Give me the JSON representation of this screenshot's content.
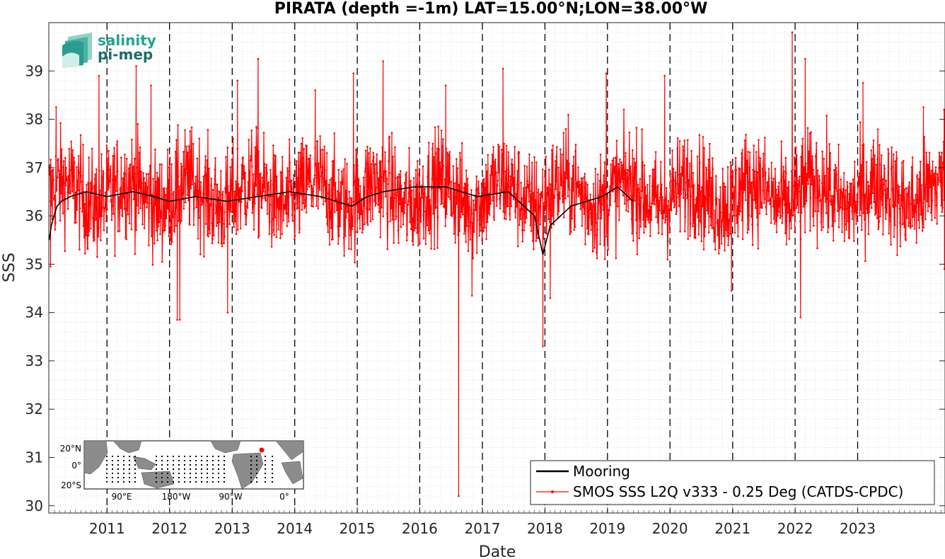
{
  "chart_data": {
    "type": "line",
    "title": "PIRATA (depth =-1m) LAT=15.00°N;LON=38.00°W",
    "xlabel": "Date",
    "ylabel": "SSS",
    "xlim": [
      "2010-01-26",
      "2024-05-25"
    ],
    "ylim": [
      29.85,
      40.0
    ],
    "y_ticks": [
      30,
      31,
      32,
      33,
      34,
      35,
      36,
      37,
      38,
      39
    ],
    "x_ticks": [
      "2011",
      "2012",
      "2013",
      "2014",
      "2015",
      "2016",
      "2017",
      "2018",
      "2019",
      "2020",
      "2021",
      "2022",
      "2023"
    ],
    "year_boundaries": [
      "2011-01-01",
      "2012-01-01",
      "2013-01-01",
      "2014-01-01",
      "2015-01-01",
      "2016-01-01",
      "2017-01-01",
      "2018-01-01",
      "2019-01-01",
      "2020-01-01",
      "2021-01-01",
      "2022-01-01",
      "2023-01-01"
    ],
    "grid": true,
    "legend_position": "bottom-right",
    "series": [
      {
        "name": "Mooring",
        "color": "#000000",
        "style": "solid",
        "points": [
          [
            "2010-01-28",
            35.5
          ],
          [
            "2010-02-10",
            35.8
          ],
          [
            "2010-02-25",
            36.0
          ],
          [
            "2010-03-15",
            36.2
          ],
          [
            "2010-04-10",
            36.3
          ],
          [
            "2010-06-01",
            36.4
          ],
          [
            "2010-09-01",
            36.5
          ],
          [
            "2011-01-01",
            36.4
          ],
          [
            "2011-06-01",
            36.5
          ],
          [
            "2011-10-01",
            36.4
          ],
          [
            "2012-01-01",
            36.3
          ],
          [
            "2012-06-01",
            36.4
          ],
          [
            "2012-12-01",
            36.3
          ],
          [
            "2013-06-01",
            36.4
          ],
          [
            "2013-12-01",
            36.5
          ],
          [
            "2014-06-01",
            36.4
          ],
          [
            "2014-12-01",
            36.2
          ],
          [
            "2015-03-01",
            36.4
          ],
          [
            "2015-06-01",
            36.5
          ],
          [
            "2015-12-01",
            36.6
          ],
          [
            "2016-06-01",
            36.6
          ],
          [
            "2016-12-01",
            36.4
          ],
          [
            "2017-06-01",
            36.5
          ],
          [
            "2017-11-01",
            36.0
          ],
          [
            "2017-12-20",
            35.2
          ],
          [
            "2018-02-01",
            35.8
          ],
          [
            "2018-06-01",
            36.2
          ],
          [
            "2018-12-01",
            36.4
          ],
          [
            "2019-03-01",
            36.6
          ],
          [
            "2019-06-01",
            36.3
          ]
        ]
      },
      {
        "name": "SMOS SSS L2Q v333 - 0.25 Deg (CATDS-CPDC)",
        "color": "#ff0000",
        "style": "solid-with-dots",
        "mean": 36.45,
        "spread": 0.55,
        "extremes": [
          [
            "2010-02-05",
            34.95
          ],
          [
            "2010-03-10",
            38.25
          ],
          [
            "2010-11-15",
            38.9
          ],
          [
            "2011-06-20",
            39.1
          ],
          [
            "2011-09-15",
            38.7
          ],
          [
            "2012-02-15",
            33.85
          ],
          [
            "2012-03-01",
            33.85
          ],
          [
            "2012-12-05",
            34.0
          ],
          [
            "2013-06-01",
            39.25
          ],
          [
            "2013-02-01",
            38.8
          ],
          [
            "2014-05-01",
            38.6
          ],
          [
            "2014-12-10",
            38.95
          ],
          [
            "2015-06-01",
            39.2
          ],
          [
            "2016-06-01",
            38.7
          ],
          [
            "2016-08-15",
            30.2
          ],
          [
            "2016-11-01",
            34.35
          ],
          [
            "2017-05-01",
            39.05
          ],
          [
            "2017-12-20",
            33.3
          ],
          [
            "2018-02-01",
            34.3
          ],
          [
            "2018-12-25",
            38.95
          ],
          [
            "2019-12-01",
            38.9
          ],
          [
            "2020-12-25",
            34.45
          ],
          [
            "2021-12-15",
            39.8
          ],
          [
            "2022-03-01",
            39.25
          ],
          [
            "2022-02-01",
            33.9
          ],
          [
            "2023-02-01",
            38.75
          ],
          [
            "2024-01-20",
            38.25
          ],
          [
            "2024-05-20",
            38.2
          ],
          [
            "2024-05-22",
            34.9
          ]
        ]
      }
    ]
  },
  "logo": {
    "line1": "salinity",
    "line2": "pi-mep"
  },
  "inset_map": {
    "lat_labels": [
      "20°N",
      "0°",
      "20°S"
    ],
    "lon_labels": [
      "90°E",
      "180°W",
      "90°W",
      "0°"
    ],
    "marker_color": "#ff0000"
  }
}
